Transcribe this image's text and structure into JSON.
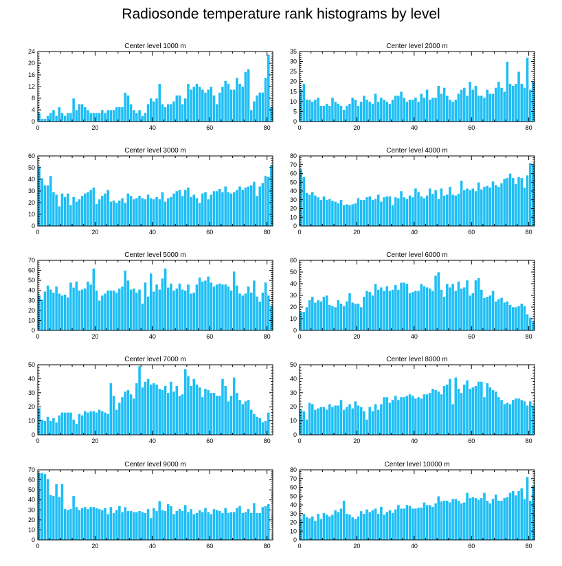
{
  "title": "Radiosonde temperature rank histograms by level",
  "colors": {
    "bar": "#1ebef5",
    "axis": "#000000",
    "background": "#ffffff"
  },
  "chart_data": [
    {
      "type": "bar",
      "title": "Center level 1000 m",
      "ylim": [
        0,
        24
      ],
      "yticks": [
        0,
        4,
        8,
        12,
        16,
        20,
        24
      ],
      "xlim": [
        0,
        82
      ],
      "xticks": [
        0,
        20,
        40,
        60,
        80
      ],
      "values": [
        3,
        1,
        1,
        2,
        3,
        4,
        2,
        5,
        3,
        2,
        3,
        3,
        8,
        4,
        6,
        6,
        5,
        4,
        3,
        3,
        3,
        3,
        4,
        3,
        4,
        4,
        4,
        5,
        5,
        5,
        10,
        9,
        6,
        4,
        3,
        4,
        2,
        3,
        6,
        8,
        7,
        8,
        13,
        6,
        5,
        6,
        6,
        7,
        9,
        9,
        6,
        8,
        13,
        11,
        12,
        13,
        12,
        11,
        10,
        11,
        12,
        9,
        6,
        10,
        12,
        14,
        13,
        11,
        11,
        15,
        13,
        12,
        17,
        18,
        4,
        7,
        9,
        10,
        10,
        15,
        23,
        5
      ]
    },
    {
      "type": "bar",
      "title": "Center level 2000 m",
      "ylim": [
        0,
        35
      ],
      "yticks": [
        0,
        5,
        10,
        15,
        20,
        25,
        30,
        35
      ],
      "xlim": [
        0,
        82
      ],
      "xticks": [
        0,
        20,
        40,
        60,
        80
      ],
      "values": [
        16,
        19,
        11,
        11,
        10,
        11,
        12,
        8,
        8,
        9,
        8,
        12,
        10,
        9,
        8,
        6,
        8,
        9,
        12,
        11,
        8,
        10,
        13,
        11,
        10,
        9,
        14,
        10,
        12,
        11,
        10,
        9,
        11,
        13,
        13,
        15,
        12,
        10,
        11,
        11,
        12,
        10,
        14,
        12,
        16,
        11,
        12,
        12,
        18,
        14,
        17,
        13,
        11,
        10,
        11,
        14,
        16,
        17,
        13,
        20,
        16,
        18,
        13,
        13,
        12,
        16,
        14,
        14,
        17,
        20,
        17,
        15,
        30,
        19,
        18,
        19,
        25,
        19,
        17,
        32,
        16,
        20
      ]
    },
    {
      "type": "bar",
      "title": "Center level 3000 m",
      "ylim": [
        0,
        60
      ],
      "yticks": [
        0,
        10,
        20,
        30,
        40,
        50,
        60
      ],
      "xlim": [
        0,
        82
      ],
      "xticks": [
        0,
        20,
        40,
        60,
        80
      ],
      "values": [
        51,
        41,
        35,
        35,
        43,
        29,
        27,
        17,
        28,
        25,
        28,
        18,
        25,
        21,
        23,
        26,
        28,
        29,
        31,
        33,
        19,
        23,
        26,
        28,
        31,
        21,
        22,
        20,
        22,
        24,
        20,
        28,
        26,
        23,
        24,
        26,
        24,
        23,
        27,
        24,
        23,
        25,
        23,
        29,
        21,
        24,
        25,
        28,
        30,
        31,
        26,
        31,
        33,
        25,
        27,
        24,
        20,
        28,
        29,
        23,
        27,
        30,
        30,
        32,
        29,
        34,
        29,
        28,
        29,
        31,
        34,
        31,
        33,
        34,
        35,
        38,
        26,
        34,
        37,
        43,
        42,
        52
      ]
    },
    {
      "type": "bar",
      "title": "Center level 4000 m",
      "ylim": [
        0,
        80
      ],
      "yticks": [
        0,
        10,
        20,
        30,
        40,
        50,
        60,
        70,
        80
      ],
      "xlim": [
        0,
        82
      ],
      "xticks": [
        0,
        20,
        40,
        60,
        80
      ],
      "values": [
        65,
        56,
        38,
        36,
        39,
        35,
        33,
        30,
        34,
        30,
        31,
        29,
        28,
        26,
        30,
        24,
        25,
        24,
        25,
        26,
        32,
        30,
        30,
        33,
        34,
        30,
        31,
        36,
        28,
        33,
        34,
        34,
        24,
        33,
        32,
        40,
        33,
        31,
        35,
        33,
        43,
        39,
        34,
        32,
        35,
        43,
        37,
        41,
        31,
        43,
        35,
        36,
        45,
        36,
        35,
        37,
        52,
        41,
        43,
        41,
        43,
        40,
        50,
        42,
        45,
        46,
        44,
        51,
        47,
        45,
        49,
        54,
        55,
        60,
        55,
        48,
        56,
        55,
        44,
        58,
        72,
        70
      ]
    },
    {
      "type": "bar",
      "title": "Center level 5000 m",
      "ylim": [
        0,
        70
      ],
      "yticks": [
        0,
        10,
        20,
        30,
        40,
        50,
        60,
        70
      ],
      "xlim": [
        0,
        82
      ],
      "xticks": [
        0,
        20,
        40,
        60,
        80
      ],
      "values": [
        35,
        31,
        39,
        45,
        41,
        38,
        44,
        37,
        35,
        36,
        33,
        48,
        43,
        49,
        40,
        41,
        42,
        49,
        46,
        62,
        40,
        30,
        35,
        37,
        40,
        40,
        40,
        38,
        42,
        44,
        60,
        50,
        41,
        42,
        38,
        41,
        27,
        48,
        34,
        57,
        39,
        46,
        41,
        52,
        62,
        43,
        47,
        40,
        42,
        47,
        41,
        40,
        46,
        37,
        38,
        46,
        53,
        49,
        50,
        54,
        48,
        44,
        46,
        47,
        46,
        46,
        44,
        40,
        59,
        45,
        37,
        35,
        37,
        44,
        38,
        50,
        34,
        29,
        38,
        48,
        35,
        25
      ]
    },
    {
      "type": "bar",
      "title": "Center level 6000 m",
      "ylim": [
        0,
        60
      ],
      "yticks": [
        0,
        10,
        20,
        30,
        40,
        50,
        60
      ],
      "xlim": [
        0,
        82
      ],
      "xticks": [
        0,
        20,
        40,
        60,
        80
      ],
      "values": [
        16,
        16,
        20,
        26,
        29,
        24,
        26,
        25,
        29,
        30,
        22,
        21,
        20,
        26,
        23,
        21,
        25,
        32,
        24,
        23,
        23,
        20,
        29,
        34,
        33,
        30,
        40,
        35,
        37,
        34,
        38,
        34,
        35,
        39,
        35,
        41,
        41,
        40,
        32,
        33,
        34,
        34,
        40,
        38,
        37,
        36,
        34,
        47,
        50,
        35,
        29,
        40,
        37,
        40,
        34,
        42,
        36,
        37,
        43,
        30,
        32,
        43,
        45,
        35,
        28,
        29,
        30,
        34,
        25,
        27,
        28,
        24,
        25,
        22,
        20,
        20,
        21,
        23,
        21,
        14,
        11,
        8
      ]
    },
    {
      "type": "bar",
      "title": "Center level 7000 m",
      "ylim": [
        0,
        50
      ],
      "yticks": [
        0,
        10,
        20,
        30,
        40,
        50
      ],
      "xlim": [
        0,
        82
      ],
      "xticks": [
        0,
        20,
        40,
        60,
        80
      ],
      "values": [
        19,
        11,
        10,
        13,
        10,
        12,
        9,
        14,
        16,
        16,
        16,
        16,
        11,
        8,
        15,
        14,
        17,
        16,
        17,
        17,
        16,
        18,
        17,
        16,
        15,
        37,
        28,
        18,
        23,
        27,
        31,
        32,
        29,
        26,
        37,
        49,
        34,
        38,
        40,
        36,
        37,
        36,
        33,
        32,
        35,
        30,
        38,
        31,
        35,
        28,
        29,
        47,
        42,
        35,
        40,
        36,
        34,
        27,
        33,
        32,
        30,
        30,
        28,
        28,
        40,
        35,
        24,
        28,
        41,
        30,
        25,
        22,
        24,
        25,
        18,
        15,
        13,
        12,
        9,
        10,
        16,
        0
      ]
    },
    {
      "type": "bar",
      "title": "Center level 8000 m",
      "ylim": [
        0,
        50
      ],
      "yticks": [
        0,
        10,
        20,
        30,
        40,
        50
      ],
      "xlim": [
        0,
        82
      ],
      "xticks": [
        0,
        20,
        40,
        60,
        80
      ],
      "values": [
        18,
        17,
        11,
        23,
        22,
        18,
        19,
        20,
        20,
        18,
        22,
        20,
        21,
        21,
        25,
        18,
        20,
        22,
        19,
        24,
        21,
        20,
        17,
        11,
        20,
        17,
        22,
        18,
        22,
        27,
        27,
        23,
        25,
        28,
        25,
        27,
        27,
        28,
        29,
        28,
        26,
        27,
        26,
        29,
        29,
        30,
        33,
        32,
        31,
        29,
        35,
        36,
        40,
        22,
        41,
        33,
        30,
        36,
        39,
        33,
        34,
        35,
        38,
        38,
        27,
        37,
        34,
        32,
        31,
        27,
        25,
        22,
        23,
        22,
        25,
        26,
        26,
        25,
        24,
        21,
        24,
        21
      ]
    },
    {
      "type": "bar",
      "title": "Center level 9000 m",
      "ylim": [
        0,
        70
      ],
      "yticks": [
        0,
        10,
        20,
        30,
        40,
        50,
        60,
        70
      ],
      "xlim": [
        0,
        82
      ],
      "xticks": [
        0,
        20,
        40,
        60,
        80
      ],
      "values": [
        67,
        67,
        66,
        61,
        45,
        44,
        56,
        43,
        56,
        31,
        30,
        31,
        44,
        33,
        30,
        32,
        33,
        31,
        33,
        33,
        32,
        31,
        30,
        32,
        26,
        33,
        27,
        30,
        34,
        28,
        33,
        29,
        29,
        28,
        28,
        29,
        28,
        27,
        31,
        22,
        32,
        29,
        39,
        30,
        29,
        36,
        34,
        26,
        29,
        31,
        29,
        35,
        28,
        31,
        26,
        27,
        30,
        28,
        32,
        28,
        26,
        31,
        30,
        29,
        27,
        32,
        27,
        28,
        28,
        32,
        34,
        27,
        28,
        31,
        27,
        37,
        27,
        27,
        33,
        34,
        36,
        0
      ]
    },
    {
      "type": "bar",
      "title": "Center level 10000 m",
      "ylim": [
        0,
        80
      ],
      "yticks": [
        0,
        10,
        20,
        30,
        40,
        50,
        60,
        70,
        80
      ],
      "xlim": [
        0,
        82
      ],
      "xticks": [
        0,
        20,
        40,
        60,
        80
      ],
      "values": [
        24,
        30,
        26,
        25,
        27,
        22,
        30,
        24,
        31,
        29,
        27,
        29,
        34,
        32,
        36,
        45,
        30,
        29,
        26,
        24,
        27,
        33,
        30,
        35,
        32,
        34,
        36,
        30,
        38,
        29,
        32,
        34,
        31,
        35,
        40,
        36,
        36,
        40,
        39,
        36,
        36,
        37,
        37,
        43,
        40,
        40,
        38,
        42,
        50,
        44,
        45,
        45,
        43,
        47,
        47,
        45,
        42,
        43,
        54,
        48,
        49,
        48,
        46,
        48,
        54,
        45,
        42,
        47,
        52,
        45,
        45,
        48,
        49,
        54,
        56,
        51,
        56,
        59,
        47,
        72,
        45,
        62
      ]
    }
  ]
}
